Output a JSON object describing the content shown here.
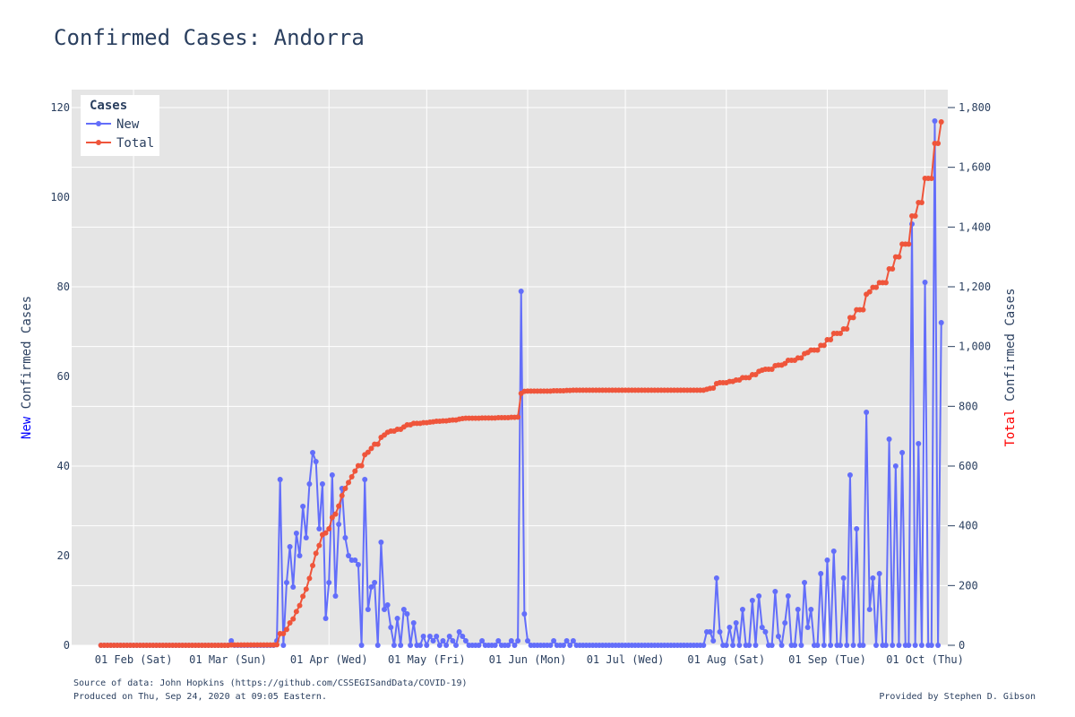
{
  "chart_data": {
    "type": "line",
    "title": "Confirmed Cases: Andorra",
    "y_left_label_prefix": "New",
    "y_left_label_rest": " Confirmed Cases",
    "y_right_label_prefix": "Total",
    "y_right_label_rest": " Confirmed Cases",
    "y_left_range": [
      0,
      124
    ],
    "y_right_range": [
      0,
      1860
    ],
    "y_left_ticks": [
      {
        "v": 0,
        "label": "0"
      },
      {
        "v": 20,
        "label": "20"
      },
      {
        "v": 40,
        "label": "40"
      },
      {
        "v": 60,
        "label": "60"
      },
      {
        "v": 80,
        "label": "80"
      },
      {
        "v": 100,
        "label": "100"
      },
      {
        "v": 120,
        "label": "120"
      }
    ],
    "y_right_ticks": [
      {
        "v": 0,
        "label": "0"
      },
      {
        "v": 200,
        "label": "200"
      },
      {
        "v": 400,
        "label": "400"
      },
      {
        "v": 600,
        "label": "600"
      },
      {
        "v": 800,
        "label": "800"
      },
      {
        "v": 1000,
        "label": "1,000"
      },
      {
        "v": 1200,
        "label": "1,200"
      },
      {
        "v": 1400,
        "label": "1,400"
      },
      {
        "v": 1600,
        "label": "1,600"
      },
      {
        "v": 1800,
        "label": "1,800"
      }
    ],
    "x_range": [
      "2020-01-13",
      "2020-10-08"
    ],
    "x_ticks": [
      {
        "date": "2020-02-01",
        "label": "01 Feb (Sat)"
      },
      {
        "date": "2020-03-01",
        "label": "01 Mar (Sun)"
      },
      {
        "date": "2020-04-01",
        "label": "01 Apr (Wed)"
      },
      {
        "date": "2020-05-01",
        "label": "01 May (Fri)"
      },
      {
        "date": "2020-06-01",
        "label": "01 Jun (Mon)"
      },
      {
        "date": "2020-07-01",
        "label": "01 Jul (Wed)"
      },
      {
        "date": "2020-08-01",
        "label": "01 Aug (Sat)"
      },
      {
        "date": "2020-09-01",
        "label": "01 Sep (Tue)"
      },
      {
        "date": "2020-10-01",
        "label": "01 Oct (Thu)"
      }
    ],
    "grid": true,
    "legend_placement": "top-left",
    "legend_title": "Cases",
    "series": [
      {
        "name": "New",
        "axis": "left",
        "color": "#636efa",
        "start": "2020-01-22",
        "values": [
          0,
          0,
          0,
          0,
          0,
          0,
          0,
          0,
          0,
          0,
          0,
          0,
          0,
          0,
          0,
          0,
          0,
          0,
          0,
          0,
          0,
          0,
          0,
          0,
          0,
          0,
          0,
          0,
          0,
          0,
          0,
          0,
          0,
          0,
          0,
          0,
          0,
          0,
          0,
          0,
          1,
          0,
          0,
          0,
          0,
          0,
          0,
          0,
          0,
          0,
          0,
          0,
          0,
          0,
          1,
          37,
          0,
          14,
          22,
          13,
          25,
          20,
          31,
          24,
          36,
          43,
          41,
          26,
          36,
          6,
          14,
          38,
          11,
          27,
          35,
          24,
          20,
          19,
          19,
          18,
          0,
          37,
          8,
          13,
          14,
          0,
          23,
          8,
          9,
          4,
          0,
          6,
          0,
          8,
          7,
          0,
          5,
          0,
          0,
          2,
          0,
          2,
          1,
          2,
          0,
          1,
          0,
          2,
          1,
          0,
          3,
          2,
          1,
          0,
          0,
          0,
          0,
          1,
          0,
          0,
          0,
          0,
          1,
          0,
          0,
          0,
          1,
          0,
          1,
          79,
          7,
          1,
          0,
          0,
          0,
          0,
          0,
          0,
          0,
          1,
          0,
          0,
          0,
          1,
          0,
          1,
          0,
          0,
          0,
          0,
          0,
          0,
          0,
          0,
          0,
          0,
          0,
          0,
          0,
          0,
          0,
          0,
          0,
          0,
          0,
          0,
          0,
          0,
          0,
          0,
          0,
          0,
          0,
          0,
          0,
          0,
          0,
          0,
          0,
          0,
          0,
          0,
          0,
          0,
          0,
          0,
          3,
          3,
          1,
          15,
          3,
          0,
          0,
          4,
          0,
          5,
          0,
          8,
          0,
          0,
          10,
          0,
          11,
          4,
          3,
          0,
          0,
          12,
          2,
          0,
          5,
          11,
          0,
          0,
          8,
          0,
          14,
          4,
          8,
          0,
          0,
          16,
          0,
          19,
          0,
          21,
          0,
          0,
          15,
          0,
          38,
          0,
          26,
          0,
          0,
          52,
          8,
          15,
          0,
          16,
          0,
          0,
          46,
          0,
          40,
          0,
          43,
          0,
          0,
          94,
          0,
          45,
          0,
          81,
          0,
          0,
          117,
          0,
          72
        ]
      },
      {
        "name": "Total",
        "axis": "right",
        "color": "#ef553b",
        "start": "2020-01-22",
        "values": [
          0,
          0,
          0,
          0,
          0,
          0,
          0,
          0,
          0,
          0,
          0,
          0,
          0,
          0,
          0,
          0,
          0,
          0,
          0,
          0,
          0,
          0,
          0,
          0,
          0,
          0,
          0,
          0,
          0,
          0,
          0,
          0,
          0,
          0,
          0,
          0,
          0,
          0,
          0,
          0,
          1,
          1,
          1,
          1,
          1,
          1,
          1,
          1,
          1,
          1,
          1,
          1,
          1,
          1,
          2,
          39,
          39,
          53,
          75,
          88,
          113,
          133,
          164,
          188,
          224,
          267,
          308,
          334,
          370,
          376,
          390,
          428,
          439,
          466,
          501,
          525,
          545,
          564,
          583,
          601,
          601,
          638,
          646,
          659,
          673,
          673,
          696,
          704,
          713,
          717,
          717,
          723,
          723,
          731,
          738,
          738,
          743,
          743,
          743,
          745,
          745,
          747,
          748,
          750,
          750,
          751,
          751,
          753,
          754,
          754,
          757,
          759,
          760,
          760,
          760,
          760,
          760,
          761,
          761,
          761,
          761,
          761,
          762,
          762,
          762,
          762,
          763,
          763,
          764,
          843,
          850,
          851,
          851,
          851,
          851,
          851,
          851,
          851,
          851,
          852,
          852,
          852,
          852,
          853,
          853,
          854,
          854,
          854,
          854,
          854,
          854,
          854,
          854,
          854,
          854,
          854,
          854,
          854,
          854,
          854,
          854,
          854,
          854,
          854,
          854,
          854,
          854,
          854,
          854,
          854,
          854,
          854,
          854,
          854,
          854,
          854,
          854,
          854,
          854,
          854,
          854,
          854,
          854,
          854,
          854,
          854,
          857,
          860,
          861,
          876,
          879,
          879,
          879,
          883,
          883,
          888,
          888,
          896,
          896,
          896,
          906,
          906,
          917,
          921,
          924,
          924,
          924,
          936,
          938,
          938,
          943,
          954,
          954,
          954,
          962,
          962,
          976,
          980,
          988,
          988,
          988,
          1004,
          1004,
          1023,
          1023,
          1044,
          1044,
          1044,
          1059,
          1059,
          1097,
          1097,
          1123,
          1123,
          1123,
          1175,
          1183,
          1198,
          1198,
          1214,
          1214,
          1214,
          1260,
          1260,
          1300,
          1300,
          1343,
          1343,
          1343,
          1437,
          1437,
          1482,
          1482,
          1563,
          1563,
          1563,
          1680,
          1680,
          1752
        ]
      }
    ]
  },
  "footer": {
    "source": "Source of data: John Hopkins (https://github.com/CSSEGISandData/COVID-19)",
    "produced": "Produced on Thu, Sep 24, 2020 at 09:05 Eastern.",
    "provided": "Provided by Stephen D. Gibson"
  }
}
